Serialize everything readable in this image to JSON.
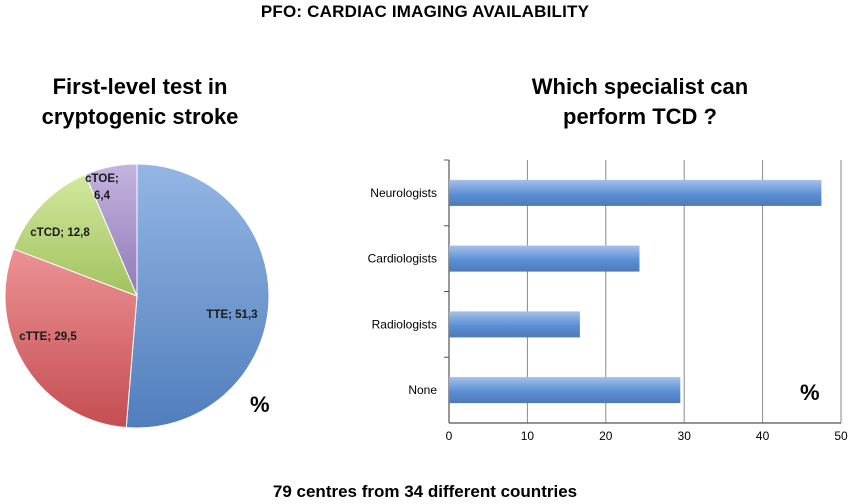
{
  "page": {
    "title": "PFO: CARDIAC IMAGING AVAILABILITY",
    "footer": "79 centres from 34 different countries"
  },
  "colors": {
    "tte": "#5b8fd6",
    "ctte": "#e0585c",
    "ctcd": "#b8dc6a",
    "ctoe": "#a48bd0",
    "bar": "#5b8fd6",
    "grid": "#8a8a8a"
  },
  "chart_data": [
    {
      "type": "pie",
      "title_line1": "First-level test in",
      "title_line2": "cryptogenic stroke",
      "unit_label": "%",
      "slices": [
        {
          "label": "TTE; 51,3",
          "name": "TTE",
          "value": 51.3,
          "color": "#5b8fd6"
        },
        {
          "label": "cTTE; 29,5",
          "name": "cTTE",
          "value": 29.5,
          "color": "#e0585c"
        },
        {
          "label": "cTCD; 12,8",
          "name": "cTCD",
          "value": 12.8,
          "color": "#b8dc6a"
        },
        {
          "label_line1": "cTOE;",
          "label_line2": "6,4",
          "name": "cTOE",
          "value": 6.4,
          "color": "#a48bd0"
        }
      ]
    },
    {
      "type": "bar",
      "orientation": "horizontal",
      "title_line1": "Which specialist can",
      "title_line2": "perform TCD ?",
      "unit_label": "%",
      "categories": [
        "Neurologists",
        "Cardiologists",
        "Radiologists",
        "None"
      ],
      "values": [
        47.5,
        24.3,
        16.7,
        29.5
      ],
      "xlim": [
        0,
        50
      ],
      "xticks": [
        "0",
        "10",
        "20",
        "30",
        "40",
        "50"
      ],
      "grid": true
    }
  ]
}
